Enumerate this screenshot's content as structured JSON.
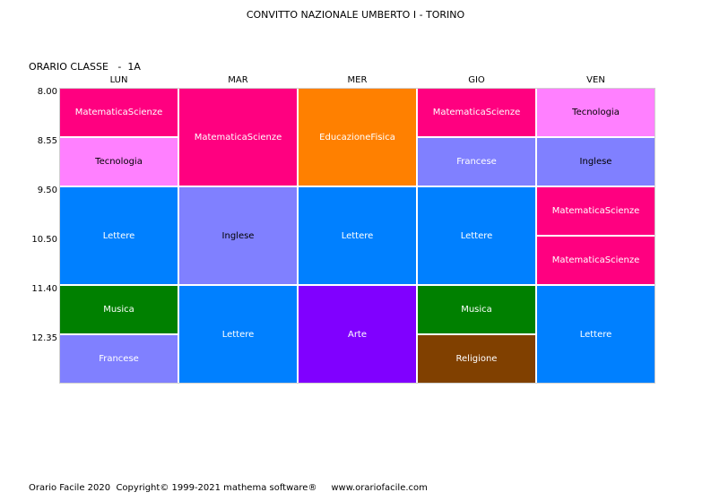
{
  "header": {
    "school": "CONVITTO NAZIONALE UMBERTO I - TORINO",
    "class_label": "ORARIO CLASSE   -  1A"
  },
  "days": [
    "LUN",
    "MAR",
    "MER",
    "GIO",
    "VEN"
  ],
  "times": [
    "8.00",
    "8.55",
    "9.50",
    "10.50",
    "11.40",
    "12.35"
  ],
  "subjects": {
    "matematica_scienze": "MatematicaScienze",
    "tecnologia": "Tecnologia",
    "lettere": "Lettere",
    "musica": "Musica",
    "francese": "Francese",
    "inglese": "Inglese",
    "educazione_fisica": "EducazioneFisica",
    "arte": "Arte",
    "religione": "Religione"
  },
  "colors": {
    "matematica_scienze": "#ff0080",
    "tecnologia": "#ff80ff",
    "lettere": "#0080ff",
    "musica": "#008000",
    "francese": "#8080ff",
    "inglese": "#8080ff",
    "educazione_fisica": "#ff8000",
    "arte": "#8000ff",
    "religione": "#804000"
  },
  "schedule": [
    {
      "day": 0,
      "start": 0,
      "span": 1,
      "subject": "matematica_scienze"
    },
    {
      "day": 0,
      "start": 1,
      "span": 1,
      "subject": "tecnologia"
    },
    {
      "day": 0,
      "start": 2,
      "span": 2,
      "subject": "lettere"
    },
    {
      "day": 0,
      "start": 4,
      "span": 1,
      "subject": "musica"
    },
    {
      "day": 0,
      "start": 5,
      "span": 1,
      "subject": "francese"
    },
    {
      "day": 1,
      "start": 0,
      "span": 2,
      "subject": "matematica_scienze"
    },
    {
      "day": 1,
      "start": 2,
      "span": 2,
      "subject": "inglese"
    },
    {
      "day": 1,
      "start": 4,
      "span": 2,
      "subject": "lettere"
    },
    {
      "day": 2,
      "start": 0,
      "span": 2,
      "subject": "educazione_fisica"
    },
    {
      "day": 2,
      "start": 2,
      "span": 2,
      "subject": "lettere"
    },
    {
      "day": 2,
      "start": 4,
      "span": 2,
      "subject": "arte"
    },
    {
      "day": 3,
      "start": 0,
      "span": 1,
      "subject": "matematica_scienze"
    },
    {
      "day": 3,
      "start": 1,
      "span": 1,
      "subject": "francese"
    },
    {
      "day": 3,
      "start": 2,
      "span": 2,
      "subject": "lettere"
    },
    {
      "day": 3,
      "start": 4,
      "span": 1,
      "subject": "musica"
    },
    {
      "day": 3,
      "start": 5,
      "span": 1,
      "subject": "religione"
    },
    {
      "day": 4,
      "start": 0,
      "span": 1,
      "subject": "tecnologia"
    },
    {
      "day": 4,
      "start": 1,
      "span": 1,
      "subject": "inglese"
    },
    {
      "day": 4,
      "start": 2,
      "span": 1,
      "subject": "matematica_scienze"
    },
    {
      "day": 4,
      "start": 3,
      "span": 1,
      "subject": "matematica_scienze"
    },
    {
      "day": 4,
      "start": 4,
      "span": 2,
      "subject": "lettere"
    }
  ],
  "footer": "Orario Facile 2020  Copyright© 1999-2021 mathema software®     www.orariofacile.com"
}
